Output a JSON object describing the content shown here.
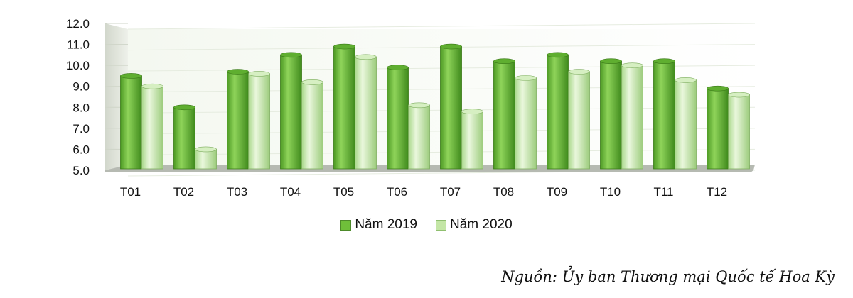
{
  "chart_data": {
    "type": "bar",
    "categories": [
      "T01",
      "T02",
      "T03",
      "T04",
      "T05",
      "T06",
      "T07",
      "T08",
      "T09",
      "T10",
      "T11",
      "T12"
    ],
    "series": [
      {
        "name": "Năm 2019",
        "values": [
          9.5,
          8.0,
          9.7,
          10.5,
          10.9,
          9.9,
          10.9,
          10.2,
          10.5,
          10.2,
          10.2,
          8.9
        ]
      },
      {
        "name": "Năm 2020",
        "values": [
          9.0,
          6.0,
          9.6,
          9.2,
          10.4,
          8.1,
          7.8,
          9.4,
          9.7,
          10.0,
          9.3,
          8.6
        ]
      }
    ],
    "yticks": [
      "5.0",
      "6.0",
      "7.0",
      "8.0",
      "9.0",
      "10.0",
      "11.0",
      "12.0"
    ],
    "ylim": [
      5,
      12
    ],
    "title": "",
    "xlabel": "",
    "ylabel": "",
    "grid": true,
    "legend_position": "bottom",
    "colors": {
      "series_2019": "#6fbf3a",
      "series_2020": "#c4e6a6",
      "grid": "#e6ece0",
      "wall": "#e2e6dc",
      "floor": "#b6bab2"
    }
  },
  "source": "Nguồn: Ủy ban Thương mại Quốc tế Hoa Kỳ"
}
